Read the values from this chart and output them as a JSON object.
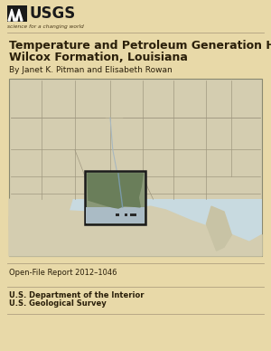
{
  "bg_color": "#e8d9a8",
  "title_line1": "Temperature and Petroleum Generation History of the",
  "title_line2": "Wilcox Formation, Louisiana",
  "author_line": "By Janet K. Pitman and Elisabeth Rowan",
  "report_number": "Open-File Report 2012–1046",
  "dept_line1": "U.S. Department of the Interior",
  "dept_line2": "U.S. Geological Survey",
  "title_fontsize": 9.0,
  "author_fontsize": 6.5,
  "small_fontsize": 6.0,
  "text_color": "#2a1f0a",
  "land_color": "#d4cdb0",
  "land_color2": "#c8c3a5",
  "water_color": "#c8dae0",
  "gulf_color": "#c0cfd5",
  "la_box_fill": "#8a9878",
  "la_land_fill": "#6a7e5a",
  "la_water_fill": "#aabbc5",
  "state_line_color": "#a09880",
  "coast_line_color": "#a8a090",
  "map_border_color": "#888870",
  "la_box_border": "#1a1a1a",
  "usgs_text_color": "#1a1a1a",
  "separator_color": "#b0a080",
  "logo_color": "#1a1a1a"
}
